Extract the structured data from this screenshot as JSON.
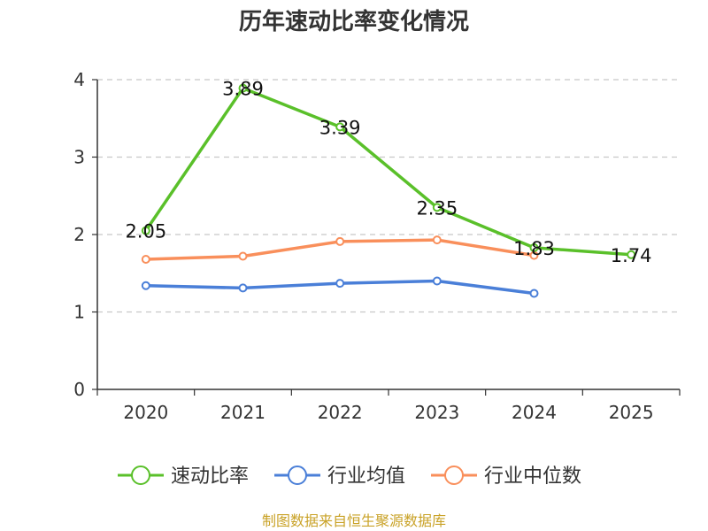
{
  "chart_data": {
    "type": "line",
    "title": "历年速动比率变化情况",
    "categories": [
      "2020",
      "2021",
      "2022",
      "2023",
      "2024",
      "2025"
    ],
    "ylim": [
      0,
      4
    ],
    "yticks": [
      0,
      1,
      2,
      3,
      4
    ],
    "grid": true,
    "legend_position": "bottom",
    "series": [
      {
        "name": "速动比率",
        "color": "#5ac02a",
        "values": [
          2.05,
          3.89,
          3.39,
          2.35,
          1.83,
          1.74
        ],
        "labels": [
          "2.05",
          "3.89",
          "3.39",
          "2.35",
          "1.83",
          "1.74"
        ]
      },
      {
        "name": "行业均值",
        "color": "#4a7fd8",
        "values": [
          1.34,
          1.31,
          1.37,
          1.4,
          1.24,
          null
        ]
      },
      {
        "name": "行业中位数",
        "color": "#f98f5b",
        "values": [
          1.68,
          1.72,
          1.91,
          1.93,
          1.73,
          null
        ]
      }
    ]
  },
  "footer": {
    "source": "制图数据来自恒生聚源数据库"
  }
}
